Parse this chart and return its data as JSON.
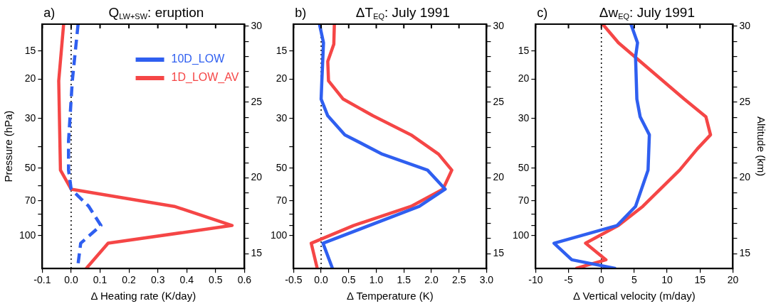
{
  "chart_data": [
    {
      "type": "line",
      "title": "Q$_{LW+SW}$: eruption",
      "annotations": [
        "a)"
      ],
      "xlabel": "Δ Heating rate (K/day)",
      "ylabel": "Pressure (hPa)",
      "log": "y",
      "legend": "top right",
      "xlim": [
        -0.1,
        0.6
      ],
      "xticks": [
        -0.1,
        {
          "value": 0,
          "label": "0.0"
        },
        0.1,
        0.2,
        0.3,
        0.4,
        0.5,
        0.6
      ],
      "ylim": [
        140,
        11.4
      ],
      "yticks": [
        15,
        20,
        30,
        {
          "value": 40,
          "label": null
        },
        50,
        {
          "value": 60,
          "label": null
        },
        70,
        {
          "value": 80,
          "label": null
        },
        {
          "value": 90,
          "label": null
        },
        100
      ],
      "y2lim": [
        14.02,
        30.14
      ],
      "y2ticks": [
        15,
        {
          "value": 16,
          "label": null
        },
        {
          "value": 17,
          "label": null
        },
        {
          "value": 18,
          "label": null
        },
        {
          "value": 19,
          "label": null
        },
        20,
        {
          "value": 21,
          "label": null
        },
        {
          "value": 22,
          "label": null
        },
        {
          "value": 23,
          "label": null
        },
        {
          "value": 24,
          "label": null
        },
        25,
        {
          "value": 26,
          "label": null
        },
        {
          "value": 27,
          "label": null
        },
        {
          "value": 28,
          "label": null
        },
        {
          "value": 29,
          "label": null
        },
        30
      ],
      "ref_lines": [
        {
          "axis": "x",
          "value": 0,
          "color": "#000000",
          "line_style": "dotted"
        }
      ],
      "series": [
        {
          "name": "10D_LOW",
          "color": "#2f5ff0",
          "line_style": "dashed",
          "x": [
            0.024,
            0.004,
            -0.009,
            -0.009,
            0.0,
            0.061,
            0.103,
            0.033,
            0.022
          ],
          "values": [
            11.4,
            20.4,
            37.8,
            51,
            62,
            74,
            90,
            108,
            140
          ]
        },
        {
          "name": "1D_LOW_AV",
          "color": "#f54646",
          "x": [
            -0.026,
            -0.043,
            -0.037,
            0.0,
            0.357,
            0.557,
            0.128,
            0.052
          ],
          "values": [
            11.4,
            20.4,
            51,
            62,
            74,
            90,
            108,
            140
          ]
        }
      ]
    },
    {
      "type": "line",
      "title": "ΔT$_{EQ}$: July 1991",
      "annotations": [
        "b)"
      ],
      "xlabel": "Δ Temperature (K)",
      "log": "y",
      "xlim": [
        -0.5,
        3.0
      ],
      "xticks": [
        -0.5,
        {
          "value": 0,
          "label": "0.0"
        },
        0.5,
        {
          "value": 1,
          "label": "1.0"
        },
        1.5,
        {
          "value": 2,
          "label": "2.0"
        },
        2.5,
        {
          "value": 3,
          "label": "3.0"
        }
      ],
      "ylim": [
        140,
        11.4
      ],
      "yticks": [
        15,
        20,
        30,
        {
          "value": 40,
          "label": null
        },
        50,
        {
          "value": 60,
          "label": null
        },
        70,
        {
          "value": 80,
          "label": null
        },
        {
          "value": 90,
          "label": null
        },
        100
      ],
      "y2lim": [
        14.02,
        30.14
      ],
      "y2ticks": [
        15,
        {
          "value": 16,
          "label": null
        },
        {
          "value": 17,
          "label": null
        },
        {
          "value": 18,
          "label": null
        },
        {
          "value": 19,
          "label": null
        },
        20,
        {
          "value": 21,
          "label": null
        },
        {
          "value": 22,
          "label": null
        },
        {
          "value": 23,
          "label": null
        },
        {
          "value": 24,
          "label": null
        },
        25,
        {
          "value": 26,
          "label": null
        },
        {
          "value": 27,
          "label": null
        },
        {
          "value": 28,
          "label": null
        },
        {
          "value": 29,
          "label": null
        },
        30
      ],
      "ref_lines": [
        {
          "axis": "x",
          "value": 0,
          "color": "#000000",
          "line_style": "dotted"
        }
      ],
      "series": [
        {
          "color": "#2f5ff0",
          "x": [
            -0.03,
            0.043,
            0.013,
            0.0,
            0.12,
            0.43,
            1.11,
            1.93,
            2.25,
            1.78,
            0.034,
            0.207
          ],
          "values": [
            11.4,
            13.8,
            20.4,
            24.6,
            29.2,
            35.5,
            43.3,
            51,
            62,
            74,
            108,
            140
          ]
        },
        {
          "color": "#f54646",
          "x": [
            0.24,
            0.23,
            0.12,
            0.134,
            0.4,
            0.94,
            1.63,
            2.13,
            2.37,
            2.21,
            1.63,
            0.59,
            -0.18,
            -0.07
          ],
          "values": [
            11.4,
            14,
            16.7,
            20.4,
            24.6,
            29.2,
            35.5,
            43.3,
            51,
            62,
            74,
            90,
            108,
            140
          ]
        }
      ]
    },
    {
      "type": "line",
      "title": "Δw$_{EQ}$: July 1991",
      "annotations": [
        "c)"
      ],
      "xlabel": "Δ Vertical velocity (m/day)",
      "y2label": "Altitude (km)",
      "log": "y",
      "xlim": [
        -10,
        20
      ],
      "xticks": [
        -10,
        -5,
        0,
        5,
        10,
        15,
        20
      ],
      "ylim": [
        140,
        11.4
      ],
      "yticks": [
        15,
        20,
        30,
        {
          "value": 40,
          "label": null
        },
        50,
        {
          "value": 60,
          "label": null
        },
        70,
        {
          "value": 80,
          "label": null
        },
        {
          "value": 90,
          "label": null
        },
        100
      ],
      "y2lim": [
        14.02,
        30.14
      ],
      "y2ticks": [
        15,
        {
          "value": 16,
          "label": null
        },
        {
          "value": 17,
          "label": null
        },
        {
          "value": 18,
          "label": null
        },
        {
          "value": 19,
          "label": null
        },
        20,
        {
          "value": 21,
          "label": null
        },
        {
          "value": 22,
          "label": null
        },
        {
          "value": 23,
          "label": null
        },
        {
          "value": 24,
          "label": null
        },
        25,
        {
          "value": 26,
          "label": null
        },
        {
          "value": 27,
          "label": null
        },
        {
          "value": 28,
          "label": null
        },
        {
          "value": 29,
          "label": null
        },
        30
      ],
      "ref_lines": [
        {
          "axis": "x",
          "value": 0,
          "color": "#000000",
          "line_style": "dotted"
        }
      ],
      "series": [
        {
          "color": "#2f5ff0",
          "x": [
            4.5,
            5.5,
            5.2,
            5.4,
            5.9,
            7.3,
            7.1,
            5.2,
            2.4,
            -7.2,
            -4.5,
            2.2
          ],
          "values": [
            11.4,
            13.8,
            16,
            24.6,
            29.5,
            35.5,
            51,
            74,
            90,
            108,
            128,
            140
          ]
        },
        {
          "color": "#f54646",
          "x": [
            0.2,
            2.6,
            12.6,
            15.9,
            16.6,
            14.6,
            11.9,
            6.3,
            2.6,
            -2.4,
            0.7,
            -3.9
          ],
          "values": [
            11.4,
            13.8,
            24.6,
            29.5,
            35.5,
            41,
            51,
            74,
            90,
            108,
            128,
            140
          ]
        }
      ]
    }
  ]
}
